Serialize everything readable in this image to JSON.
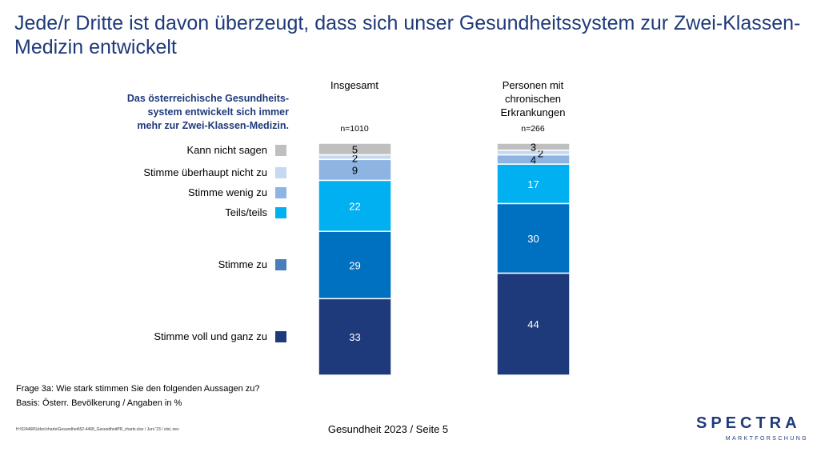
{
  "title": "Jede/r Dritte ist davon überzeugt, dass sich unser Gesundheitssystem zur Zwei-Klassen-Medizin entwickelt",
  "question_lines": [
    "Das österreichische Gesundheits-",
    "system entwickelt  sich immer",
    "mehr zur Zwei-Klassen-Medizin."
  ],
  "columns": [
    {
      "label_lines": [
        "Insgesamt"
      ],
      "n": "n=1010"
    },
    {
      "label_lines": [
        "Personen mit",
        "chronischen",
        "Erkrankungen"
      ],
      "n": "n=266"
    }
  ],
  "legend": [
    {
      "label": "Kann nicht sagen",
      "color": "#bfbfbf"
    },
    {
      "label": "Stimme überhaupt nicht zu",
      "color": "#c5d9f1"
    },
    {
      "label": "Stimme wenig zu",
      "color": "#8eb4e3"
    },
    {
      "label": "Teils/teils",
      "color": "#00b0f0"
    },
    {
      "label": "Stimme zu",
      "color": "#4a7ebb"
    },
    {
      "label": "Stimme voll und ganz zu",
      "color": "#1f3a7a"
    }
  ],
  "chart_data": {
    "type": "bar",
    "stacked": true,
    "categories": [
      "Insgesamt",
      "Personen mit chronischen Erkrankungen"
    ],
    "series": [
      {
        "name": "Stimme voll und ganz zu",
        "values": [
          33,
          44
        ],
        "color": "#1f3a7a"
      },
      {
        "name": "Stimme zu",
        "values": [
          29,
          30
        ],
        "color": "#0070c0"
      },
      {
        "name": "Teils/teils",
        "values": [
          22,
          17
        ],
        "color": "#00b0f0"
      },
      {
        "name": "Stimme wenig zu",
        "values": [
          9,
          4
        ],
        "color": "#8eb4e3"
      },
      {
        "name": "Stimme überhaupt nicht zu",
        "values": [
          2,
          2
        ],
        "color": "#c5d9f1"
      },
      {
        "name": "Kann nicht sagen",
        "values": [
          5,
          3
        ],
        "color": "#bfbfbf"
      }
    ],
    "ylim": [
      0,
      100
    ],
    "unit": "%"
  },
  "notes": {
    "question": "Frage 3a: Wie stark stimmen Sie den folgenden Aussagen zu?",
    "basis": "Basis: Österr. Bevölkerung / Angaben in %",
    "file_path": "H:\\524468\\Udoc\\charts\\Gesundheit\\52-4468_GesundheitPR_charts.xlsx / Juni '23 / elst, nev"
  },
  "footer": "Gesundheit 2023  /  Seite 5",
  "logo": {
    "word": "SPECTRA",
    "sub": "MARKTFORSCHUNG"
  }
}
